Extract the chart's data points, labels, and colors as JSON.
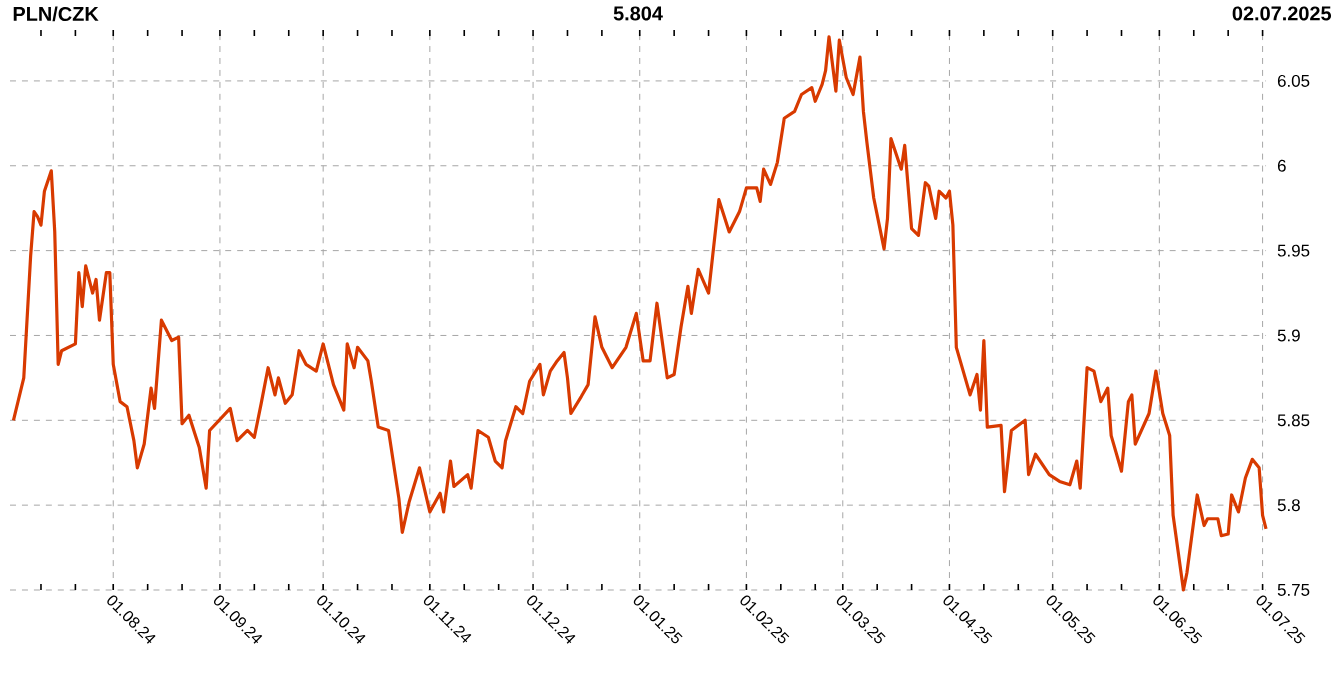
{
  "chart_data": {
    "type": "line",
    "title": "PLN/CZK",
    "annotations": [
      "5.804",
      "02.07.2025"
    ],
    "x": [
      "2024-07-03",
      "2024-07-06",
      "2024-07-08",
      "2024-07-09",
      "2024-07-10",
      "2024-07-11",
      "2024-07-12",
      "2024-07-14",
      "2024-07-15",
      "2024-07-16",
      "2024-07-17",
      "2024-07-21",
      "2024-07-22",
      "2024-07-23",
      "2024-07-24",
      "2024-07-26",
      "2024-07-27",
      "2024-07-28",
      "2024-07-30",
      "2024-07-31",
      "2024-08-01",
      "2024-08-03",
      "2024-08-05",
      "2024-08-07",
      "2024-08-08",
      "2024-08-10",
      "2024-08-12",
      "2024-08-13",
      "2024-08-15",
      "2024-08-18",
      "2024-08-20",
      "2024-08-21",
      "2024-08-23",
      "2024-08-26",
      "2024-08-28",
      "2024-08-29",
      "2024-09-04",
      "2024-09-06",
      "2024-09-09",
      "2024-09-11",
      "2024-09-13",
      "2024-09-15",
      "2024-09-17",
      "2024-09-18",
      "2024-09-20",
      "2024-09-22",
      "2024-09-24",
      "2024-09-26",
      "2024-09-29",
      "2024-10-01",
      "2024-10-04",
      "2024-10-07",
      "2024-10-08",
      "2024-10-10",
      "2024-10-11",
      "2024-10-14",
      "2024-10-15",
      "2024-10-17",
      "2024-10-20",
      "2024-10-23",
      "2024-10-24",
      "2024-10-26",
      "2024-10-29",
      "2024-11-01",
      "2024-11-04",
      "2024-11-05",
      "2024-11-07",
      "2024-11-08",
      "2024-11-12",
      "2024-11-13",
      "2024-11-15",
      "2024-11-18",
      "2024-11-20",
      "2024-11-22",
      "2024-11-23",
      "2024-11-26",
      "2024-11-28",
      "2024-11-30",
      "2024-12-03",
      "2024-12-04",
      "2024-12-06",
      "2024-12-08",
      "2024-12-10",
      "2024-12-11",
      "2024-12-12",
      "2024-12-15",
      "2024-12-17",
      "2024-12-19",
      "2024-12-21",
      "2024-12-24",
      "2024-12-28",
      "2024-12-31",
      "2025-01-02",
      "2025-01-04",
      "2025-01-06",
      "2025-01-09",
      "2025-01-11",
      "2025-01-13",
      "2025-01-15",
      "2025-01-16",
      "2025-01-18",
      "2025-01-21",
      "2025-01-24",
      "2025-01-27",
      "2025-01-30",
      "2025-02-01",
      "2025-02-04",
      "2025-02-05",
      "2025-02-06",
      "2025-02-08",
      "2025-02-10",
      "2025-02-12",
      "2025-02-15",
      "2025-02-17",
      "2025-02-20",
      "2025-02-21",
      "2025-02-23",
      "2025-02-24",
      "2025-02-25",
      "2025-02-27",
      "2025-02-28",
      "2025-03-02",
      "2025-03-04",
      "2025-03-06",
      "2025-03-07",
      "2025-03-08",
      "2025-03-10",
      "2025-03-12",
      "2025-03-13",
      "2025-03-14",
      "2025-03-15",
      "2025-03-18",
      "2025-03-19",
      "2025-03-21",
      "2025-03-23",
      "2025-03-25",
      "2025-03-26",
      "2025-03-28",
      "2025-03-29",
      "2025-03-31",
      "2025-04-01",
      "2025-04-02",
      "2025-04-03",
      "2025-04-07",
      "2025-04-09",
      "2025-04-10",
      "2025-04-11",
      "2025-04-12",
      "2025-04-16",
      "2025-04-17",
      "2025-04-19",
      "2025-04-23",
      "2025-04-24",
      "2025-04-26",
      "2025-04-30",
      "2025-05-03",
      "2025-05-06",
      "2025-05-08",
      "2025-05-09",
      "2025-05-11",
      "2025-05-13",
      "2025-05-15",
      "2025-05-17",
      "2025-05-18",
      "2025-05-21",
      "2025-05-23",
      "2025-05-24",
      "2025-05-25",
      "2025-05-29",
      "2025-05-31",
      "2025-06-02",
      "2025-06-04",
      "2025-06-05",
      "2025-06-08",
      "2025-06-09",
      "2025-06-12",
      "2025-06-14",
      "2025-06-15",
      "2025-06-18",
      "2025-06-19",
      "2025-06-21",
      "2025-06-22",
      "2025-06-24",
      "2025-06-26",
      "2025-06-28",
      "2025-06-30",
      "2025-07-01",
      "2025-07-02"
    ],
    "series": [
      {
        "color": "#d83a00",
        "values": [
          5.85,
          5.875,
          5.947,
          5.973,
          5.97,
          5.965,
          5.985,
          5.997,
          5.961,
          5.883,
          5.891,
          5.895,
          5.937,
          5.917,
          5.941,
          5.925,
          5.933,
          5.909,
          5.937,
          5.937,
          5.883,
          5.861,
          5.858,
          5.838,
          5.822,
          5.836,
          5.869,
          5.857,
          5.909,
          5.897,
          5.899,
          5.848,
          5.853,
          5.834,
          5.81,
          5.844,
          5.857,
          5.838,
          5.844,
          5.84,
          5.86,
          5.881,
          5.865,
          5.875,
          5.86,
          5.865,
          5.891,
          5.883,
          5.879,
          5.895,
          5.871,
          5.856,
          5.895,
          5.881,
          5.893,
          5.885,
          5.873,
          5.846,
          5.844,
          5.804,
          5.784,
          5.802,
          5.822,
          5.796,
          5.807,
          5.796,
          5.826,
          5.811,
          5.818,
          5.81,
          5.844,
          5.84,
          5.826,
          5.822,
          5.838,
          5.858,
          5.854,
          5.873,
          5.883,
          5.865,
          5.879,
          5.885,
          5.89,
          5.875,
          5.854,
          5.864,
          5.871,
          5.911,
          5.893,
          5.881,
          5.893,
          5.913,
          5.885,
          5.885,
          5.919,
          5.875,
          5.877,
          5.905,
          5.929,
          5.913,
          5.939,
          5.925,
          5.98,
          5.961,
          5.973,
          5.987,
          5.987,
          5.979,
          5.998,
          5.989,
          6.002,
          6.028,
          6.032,
          6.042,
          6.046,
          6.038,
          6.048,
          6.056,
          6.076,
          6.044,
          6.074,
          6.052,
          6.042,
          6.064,
          6.032,
          6.014,
          5.981,
          5.961,
          5.951,
          5.969,
          6.016,
          5.998,
          6.012,
          5.963,
          5.959,
          5.99,
          5.988,
          5.969,
          5.985,
          5.981,
          5.985,
          5.965,
          5.893,
          5.865,
          5.877,
          5.856,
          5.897,
          5.846,
          5.847,
          5.808,
          5.844,
          5.85,
          5.818,
          5.83,
          5.818,
          5.814,
          5.812,
          5.826,
          5.81,
          5.881,
          5.879,
          5.861,
          5.869,
          5.841,
          5.82,
          5.861,
          5.865,
          5.836,
          5.854,
          5.879,
          5.854,
          5.841,
          5.794,
          5.75,
          5.76,
          5.806,
          5.788,
          5.792,
          5.792,
          5.782,
          5.783,
          5.806,
          5.796,
          5.816,
          5.827,
          5.822,
          5.794,
          5.786
        ]
      }
    ],
    "xlim": [
      "2024-07-02",
      "2025-07-02"
    ],
    "xticks": [
      {
        "value": "2024-07-11",
        "label": null
      },
      {
        "value": "2024-07-21",
        "label": null
      },
      {
        "value": "2024-08-01",
        "label": "01.08.24"
      },
      {
        "value": "2024-08-11",
        "label": null
      },
      {
        "value": "2024-08-21",
        "label": null
      },
      {
        "value": "2024-09-01",
        "label": "01.09.24"
      },
      {
        "value": "2024-09-11",
        "label": null
      },
      {
        "value": "2024-09-21",
        "label": null
      },
      {
        "value": "2024-10-01",
        "label": "01.10.24"
      },
      {
        "value": "2024-10-11",
        "label": null
      },
      {
        "value": "2024-10-21",
        "label": null
      },
      {
        "value": "2024-11-01",
        "label": "01.11.24"
      },
      {
        "value": "2024-11-11",
        "label": null
      },
      {
        "value": "2024-11-21",
        "label": null
      },
      {
        "value": "2024-12-01",
        "label": "01.12.24"
      },
      {
        "value": "2024-12-11",
        "label": null
      },
      {
        "value": "2024-12-21",
        "label": null
      },
      {
        "value": "2025-01-01",
        "label": "01.01.25"
      },
      {
        "value": "2025-01-11",
        "label": null
      },
      {
        "value": "2025-01-21",
        "label": null
      },
      {
        "value": "2025-02-01",
        "label": "01.02.25"
      },
      {
        "value": "2025-02-11",
        "label": null
      },
      {
        "value": "2025-02-21",
        "label": null
      },
      {
        "value": "2025-03-01",
        "label": "01.03.25"
      },
      {
        "value": "2025-03-11",
        "label": null
      },
      {
        "value": "2025-03-21",
        "label": null
      },
      {
        "value": "2025-04-01",
        "label": "01.04.25"
      },
      {
        "value": "2025-04-11",
        "label": null
      },
      {
        "value": "2025-04-21",
        "label": null
      },
      {
        "value": "2025-05-01",
        "label": "01.05.25"
      },
      {
        "value": "2025-05-11",
        "label": null
      },
      {
        "value": "2025-05-21",
        "label": null
      },
      {
        "value": "2025-06-01",
        "label": "01.06.25"
      },
      {
        "value": "2025-06-11",
        "label": null
      },
      {
        "value": "2025-06-21",
        "label": null
      },
      {
        "value": "2025-07-01",
        "label": "01.07.25"
      }
    ],
    "ylim": [
      5.75,
      6.08
    ],
    "yticks": [
      5.75,
      5.8,
      5.85,
      5.9,
      5.95,
      6,
      6.05
    ],
    "grid": true,
    "marker": "none",
    "line_style": "solid"
  }
}
